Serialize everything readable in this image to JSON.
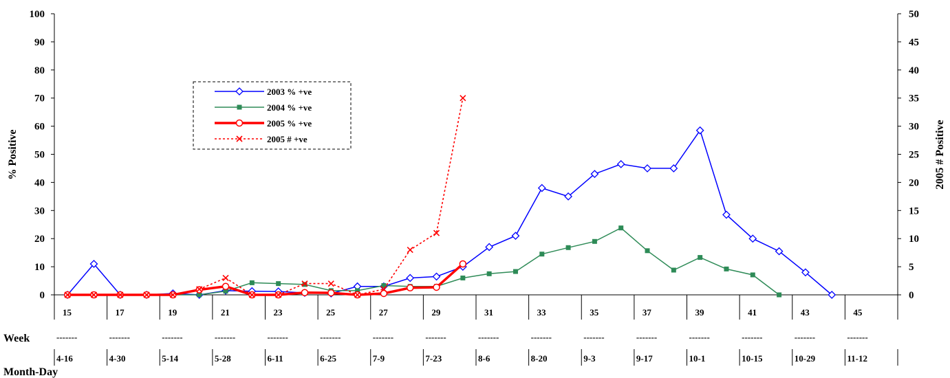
{
  "chart_data": {
    "type": "line",
    "title": "",
    "ylabel": "% Positive",
    "y2label": "2005  # Positive",
    "ylim": [
      0,
      100
    ],
    "y2lim": [
      0,
      50
    ],
    "y_ticks": [
      0,
      10,
      20,
      30,
      40,
      50,
      60,
      70,
      80,
      90,
      100
    ],
    "y2_ticks": [
      0,
      5,
      10,
      15,
      20,
      25,
      30,
      35,
      40,
      45,
      50
    ],
    "grid": false,
    "legend_position": "upper-left",
    "x": [
      15,
      16,
      17,
      18,
      19,
      20,
      21,
      22,
      23,
      24,
      25,
      26,
      27,
      28,
      29,
      30,
      31,
      32,
      33,
      34,
      35,
      36,
      37,
      38,
      39,
      40,
      41,
      42,
      43,
      44,
      45,
      46
    ],
    "week_axis_title": "Week",
    "month_day_axis_title": "Month-Day",
    "week_labels": [
      "15",
      "17",
      "19",
      "21",
      "23",
      "25",
      "27",
      "29",
      "31",
      "33",
      "35",
      "37",
      "39",
      "41",
      "43",
      "45"
    ],
    "separator": "-------",
    "month_day_labels": [
      "4-16",
      "4-30",
      "5-14",
      "5-28",
      "6-11",
      "6-25",
      "7-9",
      "7-23",
      "8-6",
      "8-20",
      "9-3",
      "9-17",
      "10-1",
      "10-15",
      "10-29",
      "11-12"
    ],
    "series": [
      {
        "name": "2003 % +ve",
        "axis": "left",
        "color": "#0000ff",
        "style": "solid",
        "marker": "diamond",
        "points": [
          [
            15,
            0
          ],
          [
            16,
            11
          ],
          [
            17,
            0
          ],
          [
            18,
            0
          ],
          [
            19,
            0.5
          ],
          [
            20,
            0
          ],
          [
            21,
            1.5
          ],
          [
            22,
            1.3
          ],
          [
            23,
            1.2
          ],
          [
            24,
            0.7
          ],
          [
            25,
            0.5
          ],
          [
            26,
            3
          ],
          [
            27,
            3
          ],
          [
            28,
            6
          ],
          [
            29,
            6.5
          ],
          [
            30,
            10
          ],
          [
            31,
            17
          ],
          [
            32,
            21
          ],
          [
            33,
            38
          ],
          [
            34,
            35
          ],
          [
            35,
            43
          ],
          [
            36,
            46.5
          ],
          [
            37,
            45
          ],
          [
            38,
            45
          ],
          [
            39,
            58.5
          ],
          [
            40,
            28.5
          ],
          [
            41,
            20
          ],
          [
            42,
            15.5
          ],
          [
            43,
            8
          ],
          [
            44,
            0
          ]
        ]
      },
      {
        "name": "2004 % +ve",
        "axis": "left",
        "color": "#2e8b57",
        "style": "solid",
        "marker": "square",
        "points": [
          [
            15,
            0
          ],
          [
            16,
            0
          ],
          [
            17,
            0
          ],
          [
            18,
            0
          ],
          [
            19,
            0
          ],
          [
            20,
            0
          ],
          [
            21,
            1.3
          ],
          [
            22,
            4.3
          ],
          [
            23,
            4
          ],
          [
            24,
            3.7
          ],
          [
            25,
            1.5
          ],
          [
            26,
            1.5
          ],
          [
            27,
            3.3
          ],
          [
            28,
            3
          ],
          [
            29,
            3
          ],
          [
            30,
            6
          ],
          [
            31,
            7.5
          ],
          [
            32,
            8.3
          ],
          [
            33,
            14.5
          ],
          [
            34,
            16.8
          ],
          [
            35,
            19
          ],
          [
            36,
            23.8
          ],
          [
            37,
            15.7
          ],
          [
            38,
            8.8
          ],
          [
            39,
            13.3
          ],
          [
            40,
            9.2
          ],
          [
            41,
            7.1
          ],
          [
            42,
            0
          ]
        ]
      },
      {
        "name": "2005 % +ve",
        "axis": "left",
        "color": "#ff0000",
        "style": "bold",
        "marker": "circle",
        "points": [
          [
            15,
            0
          ],
          [
            16,
            0
          ],
          [
            17,
            0
          ],
          [
            18,
            0
          ],
          [
            19,
            0
          ],
          [
            20,
            1.8
          ],
          [
            21,
            3
          ],
          [
            22,
            0
          ],
          [
            23,
            0
          ],
          [
            24,
            0.8
          ],
          [
            25,
            0.7
          ],
          [
            26,
            0
          ],
          [
            27,
            0.5
          ],
          [
            28,
            2.5
          ],
          [
            29,
            2.7
          ],
          [
            30,
            11
          ]
        ]
      },
      {
        "name": "2005 #  +ve",
        "axis": "right",
        "color": "#ff0000",
        "style": "dotted",
        "marker": "x",
        "points": [
          [
            15,
            0
          ],
          [
            16,
            0
          ],
          [
            17,
            0
          ],
          [
            18,
            0
          ],
          [
            19,
            0
          ],
          [
            20,
            1
          ],
          [
            21,
            3
          ],
          [
            22,
            0
          ],
          [
            23,
            0
          ],
          [
            24,
            2
          ],
          [
            25,
            2
          ],
          [
            26,
            0
          ],
          [
            27,
            1
          ],
          [
            28,
            8
          ],
          [
            29,
            11
          ],
          [
            30,
            35
          ]
        ]
      }
    ]
  }
}
